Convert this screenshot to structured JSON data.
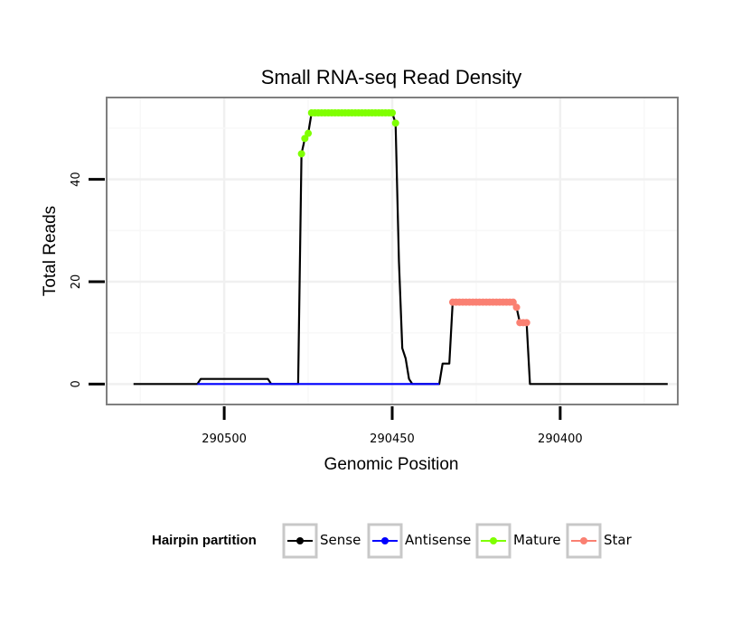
{
  "chart_data": {
    "type": "line",
    "title": "Small RNA-seq Read Density",
    "xlabel": "Genomic Position",
    "ylabel": "Total Reads",
    "x_reversed": true,
    "xlim": [
      290535,
      290365
    ],
    "ylim": [
      -4,
      56
    ],
    "x_ticks": [
      290500,
      290450,
      290400
    ],
    "x_tick_labels": [
      "290500",
      "290450",
      "290400"
    ],
    "y_ticks": [
      0,
      20,
      40
    ],
    "y_tick_labels": [
      "0",
      "20",
      "40"
    ],
    "grid": true,
    "legend": {
      "title": "Hairpin partition",
      "position": "bottom",
      "entries": [
        "Sense",
        "Antisense",
        "Mature",
        "Star"
      ]
    },
    "colors": {
      "Sense": "#000000",
      "Antisense": "#0000ff",
      "Mature": "#7fff00",
      "Star": "#fa8072"
    },
    "series": [
      {
        "name": "Sense",
        "style": "line",
        "points": [
          [
            290527,
            0
          ],
          [
            290508,
            0
          ],
          [
            290507,
            1
          ],
          [
            290487,
            1
          ],
          [
            290486,
            0
          ],
          [
            290478,
            0
          ],
          [
            290477,
            45
          ],
          [
            290476,
            48
          ],
          [
            290475,
            49
          ],
          [
            290474,
            53
          ],
          [
            290450,
            53
          ],
          [
            290449,
            51
          ],
          [
            290448,
            24
          ],
          [
            290447,
            7
          ],
          [
            290446,
            5
          ],
          [
            290445,
            1
          ],
          [
            290444,
            0
          ],
          [
            290436,
            0
          ],
          [
            290435,
            4
          ],
          [
            290433,
            4
          ],
          [
            290432,
            16
          ],
          [
            290414,
            16
          ],
          [
            290413,
            15
          ],
          [
            290412,
            12
          ],
          [
            290410,
            12
          ],
          [
            290409,
            0
          ],
          [
            290368,
            0
          ]
        ]
      },
      {
        "name": "Antisense",
        "style": "line",
        "points": [
          [
            290508,
            0
          ],
          [
            290436,
            0
          ]
        ]
      },
      {
        "name": "Mature",
        "style": "points",
        "points": [
          [
            290477,
            45
          ],
          [
            290476,
            48
          ],
          [
            290475,
            49
          ],
          [
            290474,
            53
          ],
          [
            290473,
            53
          ],
          [
            290472,
            53
          ],
          [
            290471,
            53
          ],
          [
            290470,
            53
          ],
          [
            290469,
            53
          ],
          [
            290468,
            53
          ],
          [
            290467,
            53
          ],
          [
            290466,
            53
          ],
          [
            290465,
            53
          ],
          [
            290464,
            53
          ],
          [
            290463,
            53
          ],
          [
            290462,
            53
          ],
          [
            290461,
            53
          ],
          [
            290460,
            53
          ],
          [
            290459,
            53
          ],
          [
            290458,
            53
          ],
          [
            290457,
            53
          ],
          [
            290456,
            53
          ],
          [
            290455,
            53
          ],
          [
            290454,
            53
          ],
          [
            290453,
            53
          ],
          [
            290452,
            53
          ],
          [
            290451,
            53
          ],
          [
            290450,
            53
          ],
          [
            290449,
            51
          ]
        ]
      },
      {
        "name": "Star",
        "style": "points",
        "points": [
          [
            290432,
            16
          ],
          [
            290431,
            16
          ],
          [
            290430,
            16
          ],
          [
            290429,
            16
          ],
          [
            290428,
            16
          ],
          [
            290427,
            16
          ],
          [
            290426,
            16
          ],
          [
            290425,
            16
          ],
          [
            290424,
            16
          ],
          [
            290423,
            16
          ],
          [
            290422,
            16
          ],
          [
            290421,
            16
          ],
          [
            290420,
            16
          ],
          [
            290419,
            16
          ],
          [
            290418,
            16
          ],
          [
            290417,
            16
          ],
          [
            290416,
            16
          ],
          [
            290415,
            16
          ],
          [
            290414,
            16
          ],
          [
            290413,
            15
          ],
          [
            290412,
            12
          ],
          [
            290411,
            12
          ],
          [
            290410,
            12
          ]
        ]
      }
    ]
  }
}
